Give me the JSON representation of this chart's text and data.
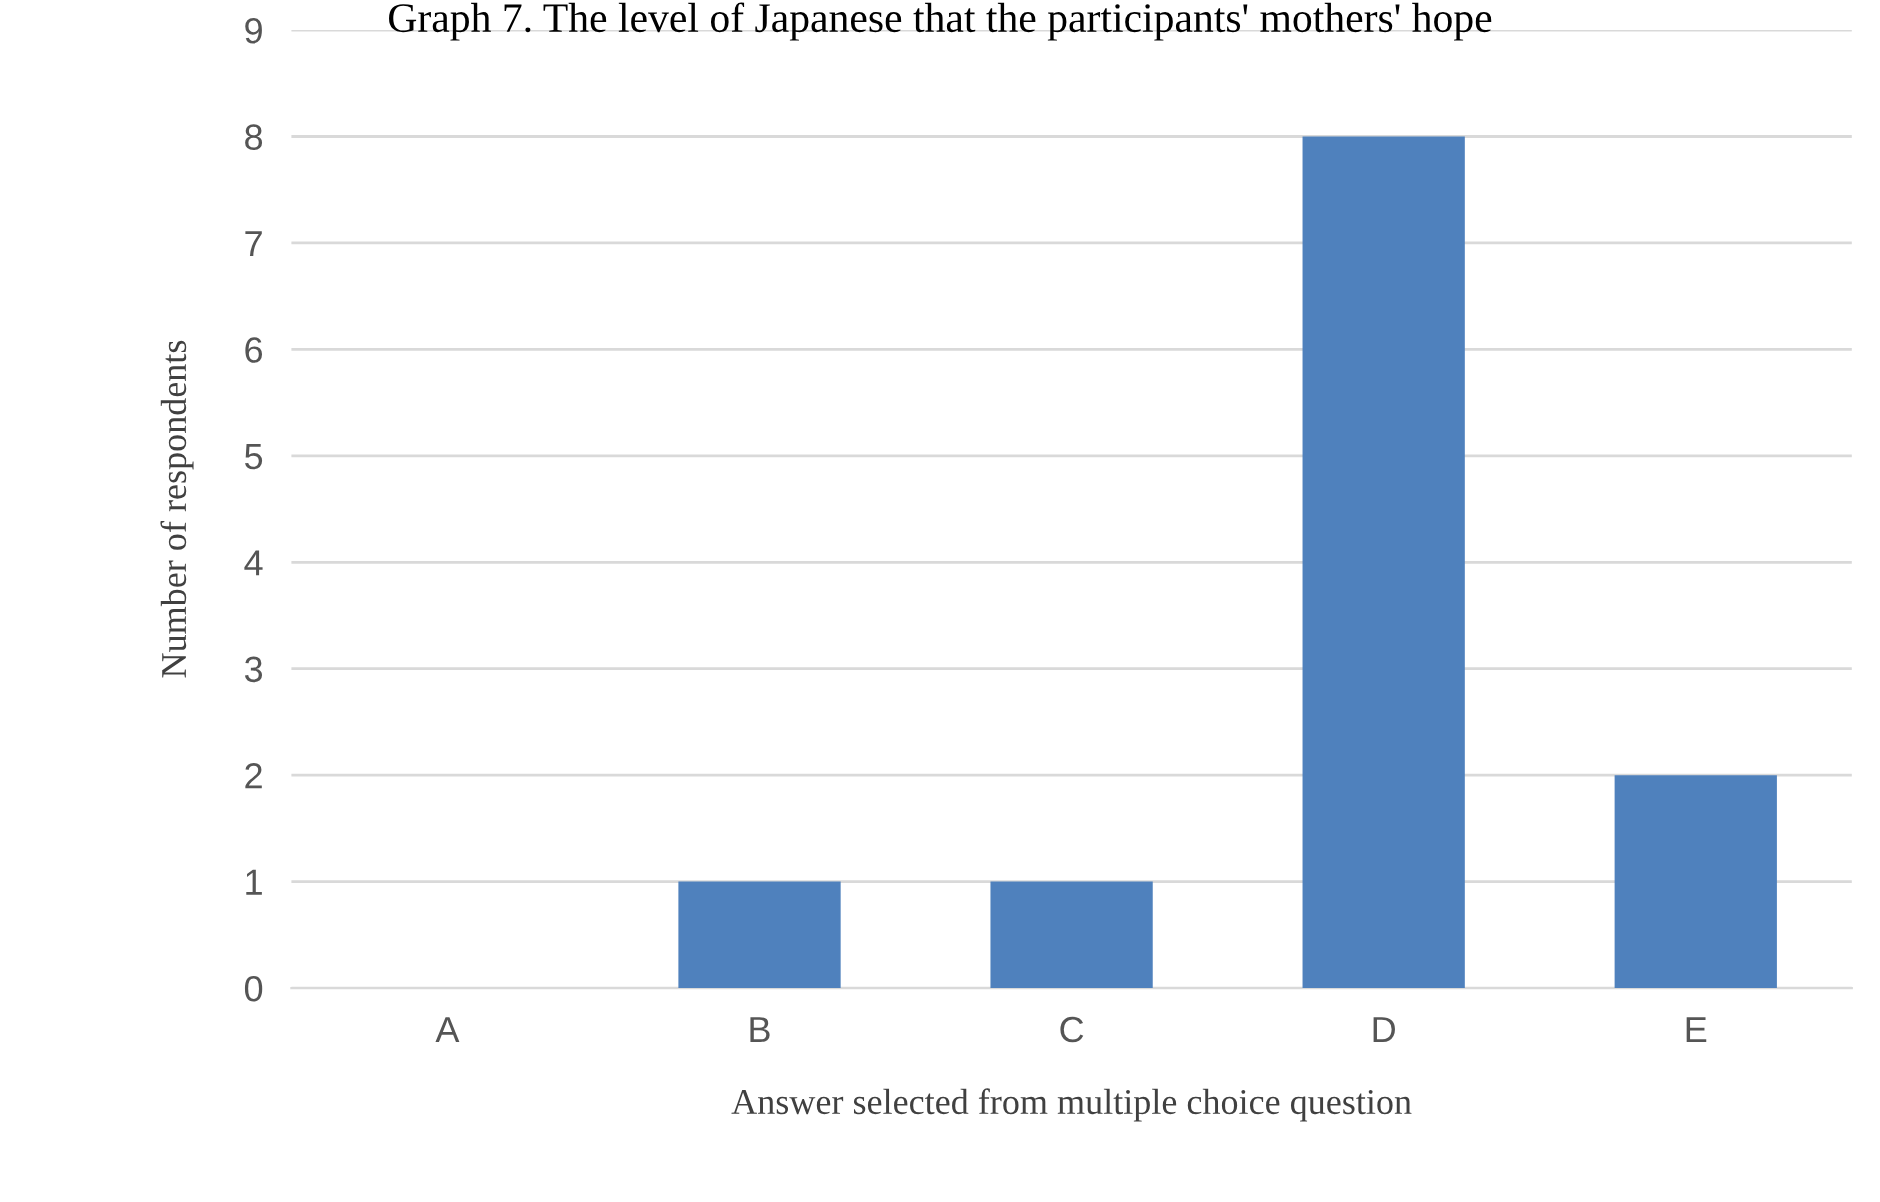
{
  "chart_data": {
    "type": "bar",
    "title": "Graph 7. The level of Japanese that the participants' mothers' hope",
    "xlabel": "Answer selected from multiple choice question",
    "ylabel": "Number of respondents",
    "categories": [
      "A",
      "B",
      "C",
      "D",
      "E"
    ],
    "values": [
      0,
      1,
      1,
      8,
      2
    ],
    "color": "#4f81bd",
    "ylim": [
      0,
      9
    ],
    "yticks": [
      0,
      1,
      2,
      3,
      4,
      5,
      6,
      7,
      8,
      9
    ],
    "grid": "y"
  }
}
